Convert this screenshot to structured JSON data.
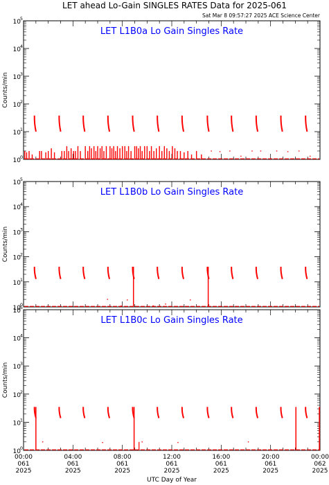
{
  "title": "LET ahead Lo-Gain SINGLES RATES Data for 2025-061",
  "timestamp": "Sat Mar  8 09:57:27 2025 ACE Science Center",
  "xlabel": "UTC Day of Year",
  "ylabel": "Counts/min",
  "colors": {
    "panel_title": "#0000ff",
    "data": "#ff0000",
    "axis": "#000000"
  },
  "chart_data": [
    {
      "type": "line",
      "title": "LET L1B0a Lo Gain Singles Rate",
      "ylabel": "Counts/min",
      "yscale": "log",
      "ylim": [
        1,
        100000
      ],
      "yticks": [
        1,
        10,
        100,
        1000,
        10000,
        100000
      ],
      "ytick_labels": [
        [
          "10",
          "0"
        ],
        [
          "10",
          "1"
        ],
        [
          "10",
          "2"
        ],
        [
          "10",
          "3"
        ],
        [
          "10",
          "4"
        ],
        [
          "10",
          "5"
        ]
      ],
      "xlim": [
        "2025-061 00:00",
        "2025-062 00:00"
      ],
      "spikes_hours": [
        0.95,
        2.95,
        4.9,
        6.9,
        8.9,
        10.9,
        12.9,
        14.95,
        16.9,
        18.9,
        20.9,
        22.9
      ],
      "spike_range": [
        10,
        38
      ],
      "noise_hours": [
        0.1,
        0.25,
        0.45,
        0.7,
        1.3,
        1.45,
        1.8,
        2.0,
        2.25,
        2.5,
        3.1,
        3.3,
        3.5,
        3.65,
        3.85,
        4.05,
        4.2,
        4.4,
        4.6,
        5.0,
        5.2,
        5.35,
        5.5,
        5.7,
        5.85,
        6.0,
        6.2,
        6.35,
        6.5,
        6.7,
        7.0,
        7.15,
        7.3,
        7.45,
        7.6,
        7.8,
        8.0,
        8.2,
        8.35,
        8.5,
        8.7,
        9.0,
        9.15,
        9.3,
        9.45,
        9.6,
        9.8,
        10.0,
        10.2,
        10.35,
        10.55,
        10.75,
        11.0,
        11.2,
        11.4,
        11.6,
        11.8,
        12.05,
        12.25,
        12.45,
        12.7,
        13.0,
        13.3,
        13.6,
        14.0,
        14.4
      ],
      "noise_values": [
        2,
        1.8,
        2,
        1.5,
        2,
        2,
        1.8,
        2,
        2.5,
        1.8,
        2,
        2,
        3,
        2,
        2.5,
        2,
        2,
        3,
        2,
        3,
        2,
        3,
        2.5,
        3,
        2,
        3,
        2.5,
        3,
        2,
        3,
        3,
        2.5,
        3,
        2,
        3,
        2.5,
        3,
        3,
        2,
        3,
        2,
        3,
        3,
        2.5,
        3,
        2,
        3,
        3,
        2,
        3,
        2,
        2.5,
        3,
        2,
        3,
        2.5,
        2,
        3,
        2.5,
        2,
        2,
        1.8,
        2,
        1.5,
        2,
        1.5
      ],
      "sparse_points": [
        [
          15.2,
          2.0
        ],
        [
          15.9,
          1.9
        ],
        [
          16.7,
          2.0
        ],
        [
          17.6,
          1.3
        ],
        [
          18.5,
          2.0
        ],
        [
          19.2,
          2.0
        ],
        [
          20.5,
          2.0
        ],
        [
          21.4,
          1.9
        ],
        [
          22.3,
          2.0
        ],
        [
          23.2,
          1.3
        ]
      ],
      "baseline": 1.0
    },
    {
      "type": "line",
      "title": "LET L1B0b Lo Gain Singles Rate",
      "ylabel": "Counts/min",
      "yscale": "log",
      "ylim": [
        1,
        100000
      ],
      "yticks": [
        1,
        10,
        100,
        1000,
        10000,
        100000
      ],
      "ytick_labels": [
        [
          "10",
          "0"
        ],
        [
          "10",
          "1"
        ],
        [
          "10",
          "2"
        ],
        [
          "10",
          "3"
        ],
        [
          "10",
          "4"
        ],
        [
          "10",
          "5"
        ]
      ],
      "xlim": [
        "2025-061 00:00",
        "2025-062 00:00"
      ],
      "spikes_hours": [
        0.95,
        2.95,
        4.9,
        6.9,
        8.9,
        10.9,
        12.9,
        14.95,
        16.9,
        18.9,
        20.9,
        22.9
      ],
      "spike_range": [
        13,
        40
      ],
      "drops_hours": [
        8.9,
        14.95
      ],
      "sparse_points": [
        [
          6.8,
          2.0
        ],
        [
          7.9,
          1.1
        ],
        [
          8.4,
          1.9
        ],
        [
          10.5,
          1.1
        ],
        [
          11.5,
          1.3
        ],
        [
          13.5,
          1.9
        ]
      ],
      "baseline": 1.0
    },
    {
      "type": "line",
      "title": "LET L1B0c Lo Gain Singles Rate",
      "ylabel": "Counts/min",
      "yscale": "log",
      "ylim": [
        1,
        100000
      ],
      "yticks": [
        1,
        10,
        100,
        1000,
        10000,
        100000
      ],
      "ytick_labels": [
        [
          "10",
          "0"
        ],
        [
          "10",
          "1"
        ],
        [
          "10",
          "2"
        ],
        [
          "10",
          "3"
        ],
        [
          "10",
          "4"
        ],
        [
          "10",
          "5"
        ]
      ],
      "xlim": [
        "2025-061 00:00",
        "2025-062 00:00"
      ],
      "xtick_labels": [
        [
          "00:00",
          "061",
          "2025"
        ],
        [
          "04:00",
          "061",
          "2025"
        ],
        [
          "08:00",
          "061",
          "2025"
        ],
        [
          "12:00",
          "061",
          "2025"
        ],
        [
          "16:00",
          "061",
          "2025"
        ],
        [
          "20:00",
          "061",
          "2025"
        ],
        [
          "00:00",
          "062",
          "2025"
        ]
      ],
      "spikes_hours": [
        0.95,
        2.95,
        4.9,
        6.9,
        8.9,
        10.9,
        12.9,
        14.95,
        16.9,
        18.9,
        20.9,
        22.9
      ],
      "spike_range": [
        14,
        35
      ],
      "drops_hours": [
        1.0,
        8.95,
        22.05,
        23.95
      ],
      "sparse_points": [
        [
          1.55,
          2.0
        ],
        [
          6.4,
          1.9
        ],
        [
          9.6,
          2.0
        ],
        [
          12.5,
          1.9
        ],
        [
          18.2,
          2.0
        ]
      ],
      "small_bars": [
        [
          9.35,
          2.0
        ]
      ],
      "baseline": 1.0
    }
  ]
}
